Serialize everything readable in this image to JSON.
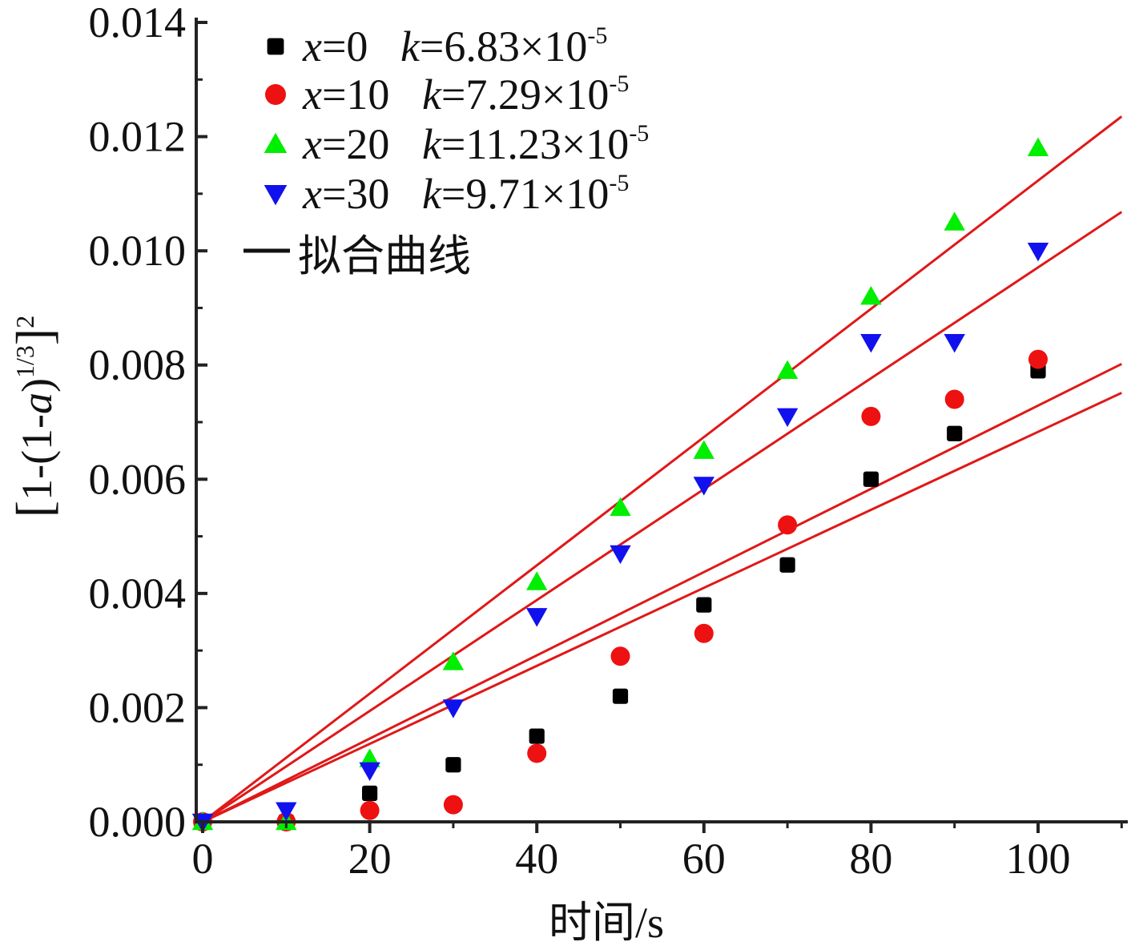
{
  "chart_data": {
    "type": "scatter",
    "xlabel": "时间/s",
    "ylabel": {
      "open": "[",
      "pre": "1-(1-",
      "var": "a",
      "close": ")",
      "exp": "1/3",
      "bracket_close": "]",
      "power": "2"
    },
    "xlim": [
      0,
      110
    ],
    "ylim": [
      0,
      0.014
    ],
    "x_ticks": [
      0,
      20,
      40,
      60,
      80,
      100
    ],
    "x_tick_labels": [
      "0",
      "20",
      "40",
      "60",
      "80",
      "100"
    ],
    "y_ticks": [
      0,
      0.002,
      0.004,
      0.006,
      0.008,
      0.01,
      0.012,
      0.014
    ],
    "y_tick_labels": [
      "0.000",
      "0.002",
      "0.004",
      "0.006",
      "0.008",
      "0.010",
      "0.012",
      "0.014"
    ],
    "grid": false,
    "legend_position": "top-left",
    "fit_line_color": "#e01818",
    "series": [
      {
        "name": "x=0 k=6.83×10-5",
        "label": {
          "var": "x",
          "eq": "=0",
          "kvar": "k",
          "keq": "=6.83×10",
          "exp": "-5"
        },
        "marker": "square",
        "color": "#000000",
        "k": 6.83e-05,
        "x": [
          0,
          10,
          20,
          30,
          40,
          50,
          60,
          70,
          80,
          90,
          100
        ],
        "y": [
          0.0,
          0.0,
          0.0005,
          0.001,
          0.0015,
          0.0022,
          0.0038,
          0.0045,
          0.006,
          0.0068,
          0.0079
        ]
      },
      {
        "name": "x=10 k=7.29×10-5",
        "label": {
          "var": "x",
          "eq": "=10",
          "kvar": "k",
          "keq": "=7.29×10",
          "exp": "-5"
        },
        "marker": "circle",
        "color": "#ee1111",
        "k": 7.29e-05,
        "x": [
          0,
          10,
          20,
          30,
          40,
          50,
          60,
          70,
          80,
          90,
          100
        ],
        "y": [
          0.0,
          0.0,
          0.0002,
          0.0003,
          0.0012,
          0.0029,
          0.0033,
          0.0052,
          0.0071,
          0.0074,
          0.0081
        ]
      },
      {
        "name": "x=20 k=11.23×10-5",
        "label": {
          "var": "x",
          "eq": "=20",
          "kvar": "k",
          "keq": "=11.23×10",
          "exp": "-5"
        },
        "marker": "triangle-up",
        "color": "#00ee00",
        "k": 0.0001123,
        "x": [
          0,
          10,
          20,
          30,
          40,
          50,
          60,
          70,
          80,
          90,
          100
        ],
        "y": [
          0.0,
          0.0,
          0.0011,
          0.0028,
          0.0042,
          0.0055,
          0.0065,
          0.0079,
          0.0092,
          0.0105,
          0.0118
        ]
      },
      {
        "name": "x=30 k=9.71×10-5",
        "label": {
          "var": "x",
          "eq": "=30",
          "kvar": "k",
          "keq": "=9.71×10",
          "exp": "-5"
        },
        "marker": "triangle-down",
        "color": "#1111ee",
        "k": 9.71e-05,
        "x": [
          0,
          10,
          20,
          30,
          40,
          50,
          60,
          70,
          80,
          90,
          100
        ],
        "y": [
          0.0,
          0.0002,
          0.0009,
          0.002,
          0.0036,
          0.0047,
          0.0059,
          0.0071,
          0.0084,
          0.0084,
          0.01
        ]
      }
    ],
    "fit_lines": [
      {
        "slope": 6.83e-05
      },
      {
        "slope": 7.29e-05
      },
      {
        "slope": 0.0001123
      },
      {
        "slope": 9.71e-05
      }
    ],
    "legend_fit_label": "拟合曲线"
  }
}
